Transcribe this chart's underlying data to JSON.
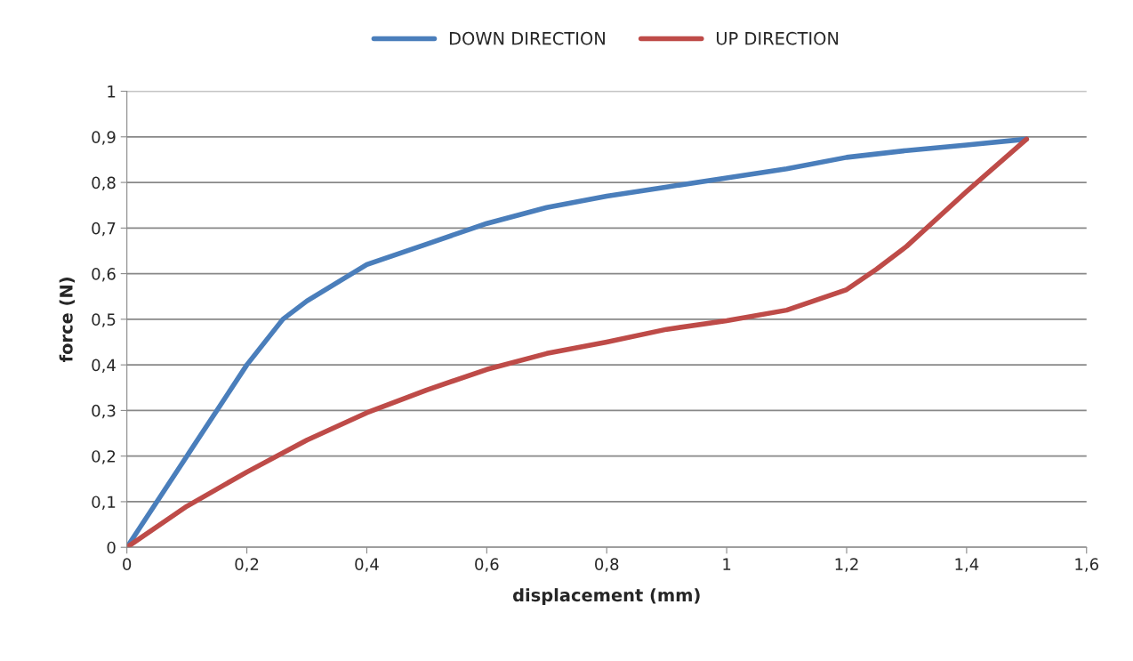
{
  "chart_data": {
    "type": "line",
    "xlabel": "displacement (mm)",
    "ylabel": "force (N)",
    "series": [
      {
        "name": "DOWN DIRECTION",
        "color": "#4a7ebb",
        "x": [
          0,
          0.1,
          0.2,
          0.26,
          0.3,
          0.4,
          0.5,
          0.6,
          0.7,
          0.8,
          0.9,
          1.0,
          1.1,
          1.2,
          1.3,
          1.4,
          1.5
        ],
        "values": [
          0,
          0.2,
          0.4,
          0.5,
          0.54,
          0.62,
          0.665,
          0.71,
          0.745,
          0.77,
          0.79,
          0.81,
          0.83,
          0.855,
          0.87,
          0.882,
          0.895
        ]
      },
      {
        "name": "UP DIRECTION",
        "color": "#be4b48",
        "x": [
          0,
          0.1,
          0.2,
          0.3,
          0.4,
          0.5,
          0.6,
          0.7,
          0.8,
          0.9,
          1.0,
          1.1,
          1.2,
          1.25,
          1.3,
          1.4,
          1.5
        ],
        "values": [
          0,
          0.09,
          0.165,
          0.235,
          0.295,
          0.345,
          0.39,
          0.425,
          0.45,
          0.478,
          0.497,
          0.52,
          0.565,
          0.61,
          0.66,
          0.78,
          0.895
        ]
      }
    ],
    "xlim": [
      0,
      1.6
    ],
    "xticks": [
      0,
      {
        "value": 0.2,
        "label": "0,2"
      },
      {
        "value": 0.4,
        "label": "0,4"
      },
      {
        "value": 0.6,
        "label": "0,6"
      },
      {
        "value": 0.8,
        "label": "0,8"
      },
      1,
      {
        "value": 1.2,
        "label": "1,2"
      },
      {
        "value": 1.4,
        "label": "1,4"
      },
      {
        "value": 1.6,
        "label": "1,6"
      }
    ],
    "ylim": [
      0,
      1
    ],
    "yticks": [
      0,
      {
        "value": 0.1,
        "label": "0,1"
      },
      {
        "value": 0.2,
        "label": "0,2"
      },
      {
        "value": 0.3,
        "label": "0,3"
      },
      {
        "value": 0.4,
        "label": "0,4"
      },
      {
        "value": 0.5,
        "label": "0,5"
      },
      {
        "value": 0.6,
        "label": "0,6"
      },
      {
        "value": 0.7,
        "label": "0,7"
      },
      {
        "value": 0.8,
        "label": "0,8"
      },
      {
        "value": 0.9,
        "label": "0,9"
      },
      1
    ],
    "grid": "y",
    "legend": "top",
    "marker": "none",
    "line_style": "solid"
  }
}
